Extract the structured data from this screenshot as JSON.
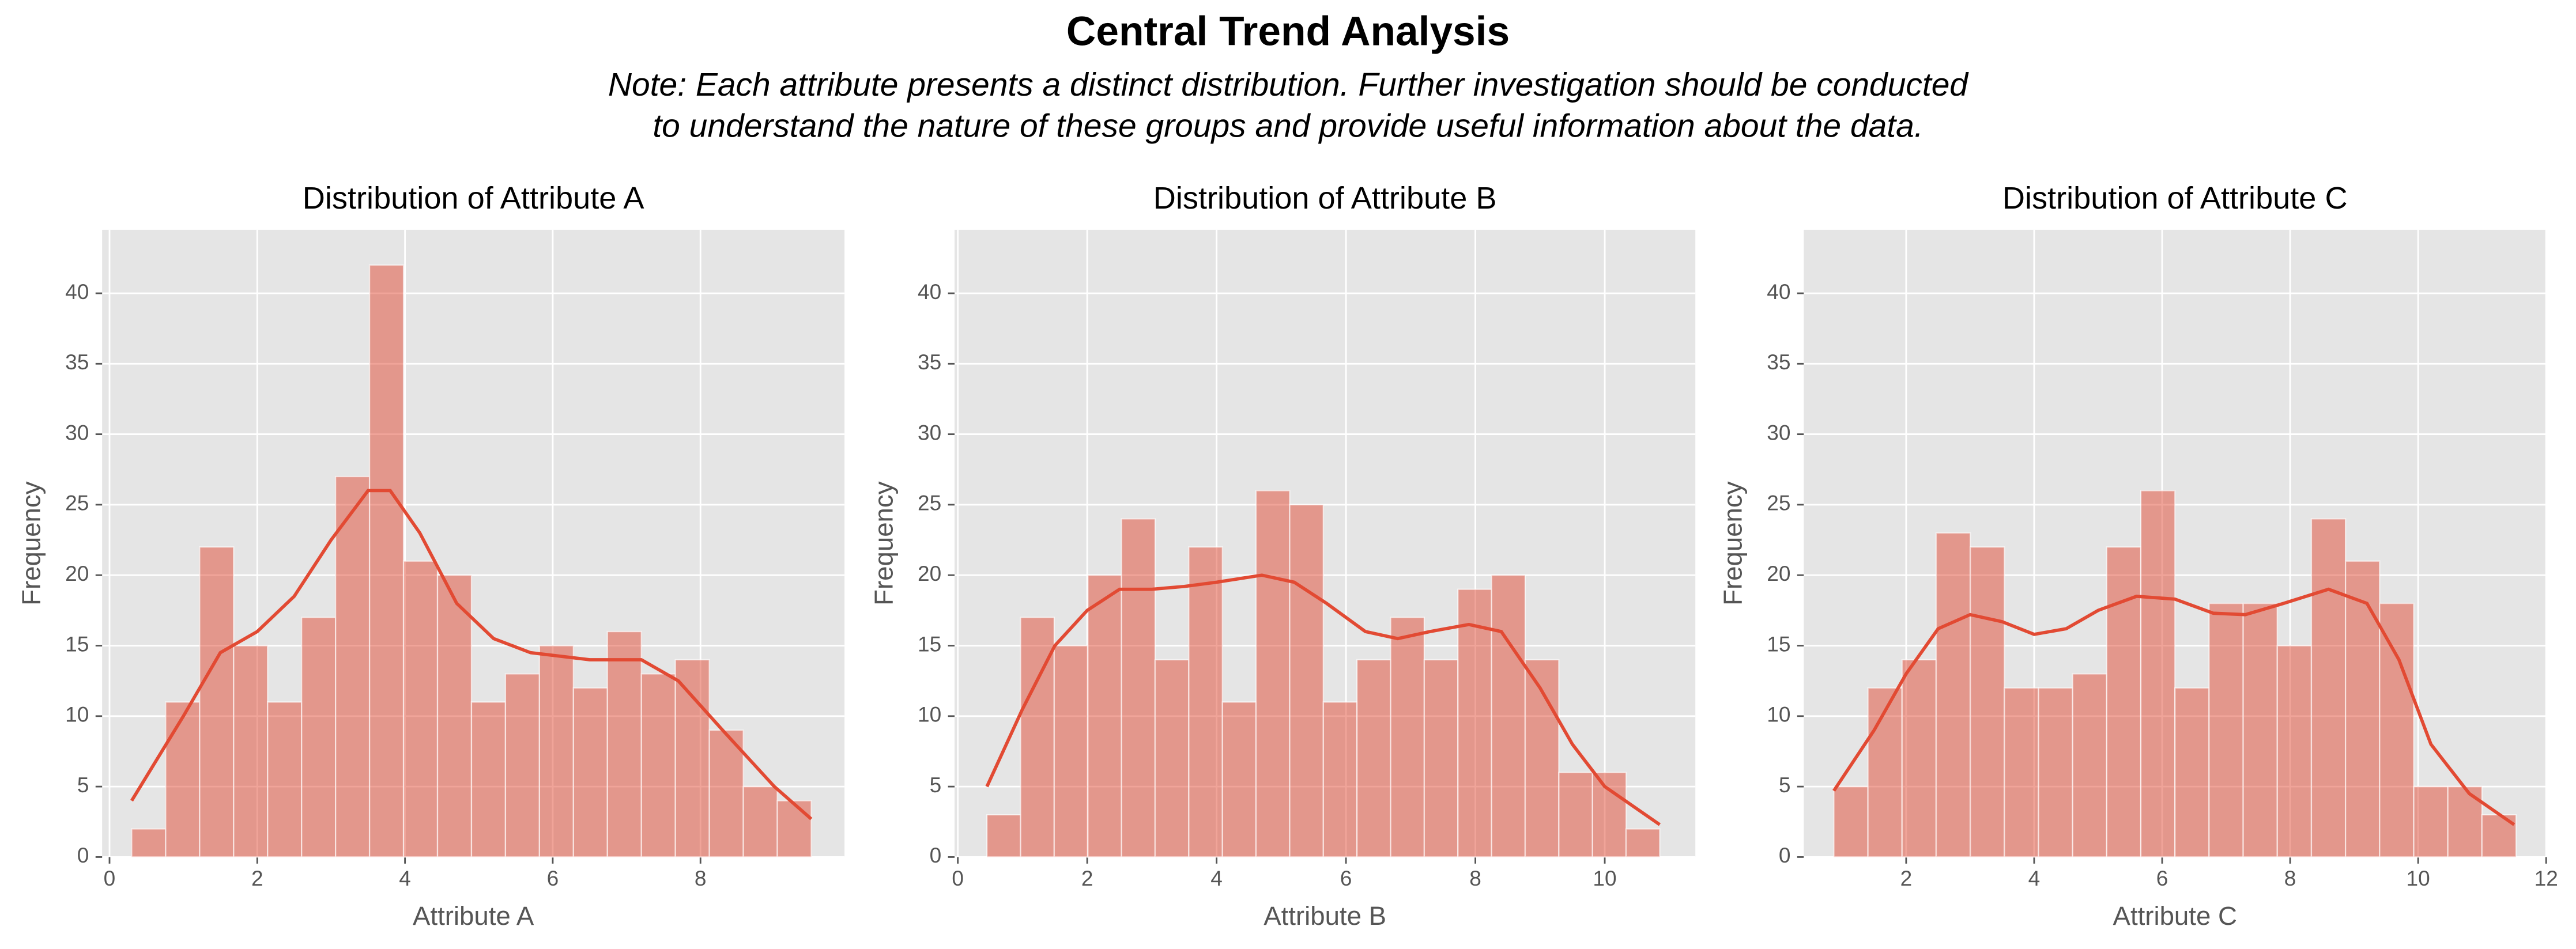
{
  "title": "Central Trend Analysis",
  "subtitle": [
    "Note: Each attribute presents a distinct distribution. Further investigation should be conducted",
    "to understand the nature of these groups and provide useful information about the data."
  ],
  "chart_data": [
    {
      "type": "histogram",
      "title": "Distribution of Attribute A",
      "xlabel": "Attribute A",
      "ylabel": "Frequency",
      "color": "#E24A33",
      "bins": [
        0.3,
        0.76,
        1.22,
        1.68,
        2.14,
        2.6,
        3.06,
        3.52,
        3.98,
        4.44,
        4.9,
        5.36,
        5.82,
        6.28,
        6.74,
        7.2,
        7.66,
        8.12,
        8.58,
        9.04,
        9.5
      ],
      "values": [
        2,
        11,
        22,
        15,
        11,
        17,
        27,
        42,
        21,
        20,
        11,
        13,
        15,
        12,
        16,
        13,
        14,
        9,
        5,
        4
      ],
      "kde": {
        "x": [
          0.3,
          1,
          1.5,
          2,
          2.5,
          3,
          3.5,
          3.8,
          4.2,
          4.7,
          5.2,
          5.7,
          6.5,
          7.2,
          7.7,
          8.3,
          9,
          9.5
        ],
        "values": [
          4,
          10,
          14.5,
          16,
          18.5,
          22.5,
          26,
          26,
          23,
          18,
          15.5,
          14.5,
          14,
          14,
          12.5,
          9,
          5,
          2.7
        ]
      },
      "xlim": [
        -0.1,
        9.95
      ],
      "xticks": [
        0,
        2,
        4,
        6,
        8
      ],
      "ylim": [
        0,
        44.5
      ],
      "yticks": [
        0,
        5,
        10,
        15,
        20,
        25,
        30,
        35,
        40
      ],
      "grid": true
    },
    {
      "type": "histogram",
      "title": "Distribution of Attribute B",
      "xlabel": "Attribute B",
      "ylabel": "Frequency",
      "color": "#E24A33",
      "bins": [
        0.45,
        0.97,
        1.49,
        2.01,
        2.53,
        3.05,
        3.57,
        4.09,
        4.61,
        5.13,
        5.65,
        6.17,
        6.69,
        7.21,
        7.73,
        8.25,
        8.77,
        9.29,
        9.81,
        10.33,
        10.85
      ],
      "values": [
        3,
        17,
        15,
        20,
        24,
        14,
        22,
        11,
        26,
        25,
        11,
        14,
        17,
        14,
        19,
        20,
        14,
        6,
        6,
        2
      ],
      "kde": {
        "x": [
          0.45,
          1,
          1.5,
          2,
          2.5,
          3,
          3.5,
          4,
          4.7,
          5.2,
          5.7,
          6.3,
          6.8,
          7.3,
          7.9,
          8.4,
          9,
          9.5,
          10,
          10.85
        ],
        "values": [
          5,
          10.5,
          15,
          17.5,
          19,
          19,
          19.2,
          19.5,
          20,
          19.5,
          18,
          16,
          15.5,
          16,
          16.5,
          16,
          12,
          8,
          5,
          2.3
        ]
      },
      "xlim": [
        -0.05,
        11.4
      ],
      "xticks": [
        0,
        2,
        4,
        6,
        8,
        10
      ],
      "ylim": [
        0,
        44.5
      ],
      "yticks": [
        0,
        5,
        10,
        15,
        20,
        25,
        30,
        35,
        40
      ],
      "grid": true
    },
    {
      "type": "histogram",
      "title": "Distribution of Attribute C",
      "xlabel": "Attribute C",
      "ylabel": "Frequency",
      "color": "#E24A33",
      "bins": [
        0.87,
        1.403,
        1.936,
        2.469,
        3.002,
        3.535,
        4.068,
        4.601,
        5.134,
        5.667,
        6.2,
        6.733,
        7.266,
        7.799,
        8.332,
        8.865,
        9.398,
        9.931,
        10.464,
        10.997,
        11.53
      ],
      "values": [
        5,
        12,
        14,
        23,
        22,
        12,
        12,
        13,
        22,
        26,
        12,
        18,
        18,
        15,
        24,
        21,
        18,
        5,
        5,
        3
      ],
      "kde": {
        "x": [
          0.87,
          1.5,
          2,
          2.5,
          3,
          3.5,
          4,
          4.5,
          5,
          5.6,
          6.2,
          6.8,
          7.3,
          7.9,
          8.6,
          9.2,
          9.7,
          10.2,
          10.8,
          11.5
        ],
        "values": [
          4.7,
          9,
          13,
          16.2,
          17.2,
          16.7,
          15.8,
          16.2,
          17.5,
          18.5,
          18.3,
          17.3,
          17.2,
          18,
          19,
          18,
          14,
          8,
          4.5,
          2.3
        ]
      },
      "xlim": [
        0.4,
        12.0
      ],
      "xticks": [
        2,
        4,
        6,
        8,
        10,
        12
      ],
      "ylim": [
        0,
        44.5
      ],
      "yticks": [
        0,
        5,
        10,
        15,
        20,
        25,
        30,
        35,
        40
      ],
      "grid": true
    }
  ]
}
